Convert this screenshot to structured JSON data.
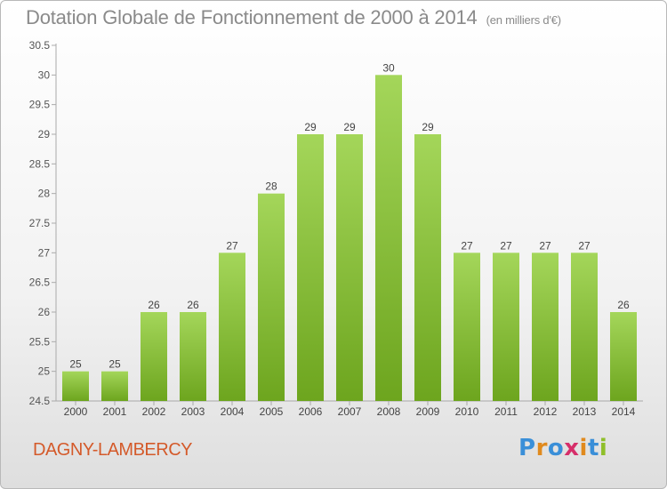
{
  "title": "Dotation Globale de Fonctionnement de 2000 à 2014",
  "subtitle": "(en milliers d'€)",
  "commune": "DAGNY-LAMBERCY",
  "logo": {
    "text": "Proxiti",
    "colors": [
      "#3a8fd8",
      "#e08a1e",
      "#3a8fd8",
      "#d62f6a",
      "#e08a1e",
      "#3a8fd8",
      "#8fbf2a"
    ]
  },
  "colors": {
    "bar_top": "#a4d65a",
    "bar_bottom": "#6da51e",
    "title": "#8a8a8a",
    "commune": "#d45a2a"
  },
  "chart_data": {
    "type": "bar",
    "categories": [
      "2000",
      "2001",
      "2002",
      "2003",
      "2004",
      "2005",
      "2006",
      "2007",
      "2008",
      "2009",
      "2010",
      "2011",
      "2012",
      "2013",
      "2014"
    ],
    "values": [
      25,
      25,
      26,
      26,
      27,
      28,
      29,
      29,
      30,
      29,
      27,
      27,
      27,
      27,
      26
    ],
    "ylim": [
      24.5,
      30.5
    ],
    "yticks": [
      "24.5",
      "25",
      "25.5",
      "26",
      "26.5",
      "27",
      "27.5",
      "28",
      "28.5",
      "29",
      "29.5",
      "30",
      "30.5"
    ],
    "grid": false,
    "xlabel": "",
    "ylabel": ""
  }
}
